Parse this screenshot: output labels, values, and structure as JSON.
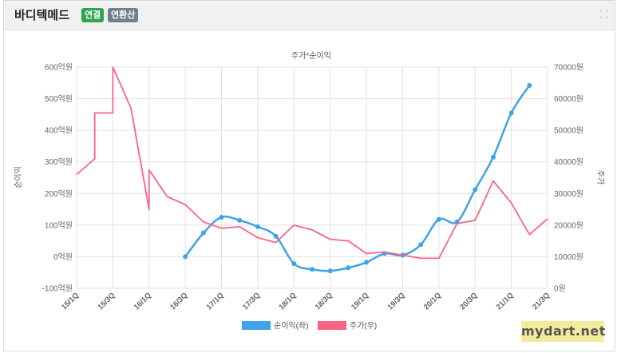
{
  "header": {
    "company": "바디텍메드",
    "badge_consolidated": "연결",
    "badge_annualized": "연환산",
    "expand_icon": "expand-icon"
  },
  "watermark": "mydart.net",
  "chart_data": {
    "type": "line",
    "title": "주가*순이익",
    "ylabel_left": "순이익",
    "ylabel_right": "주가",
    "x_ticks": [
      "15/1Q",
      "15/3Q",
      "16/1Q",
      "16/3Q",
      "17/1Q",
      "17/3Q",
      "18/1Q",
      "18/3Q",
      "19/1Q",
      "19/3Q",
      "20/1Q",
      "20/3Q",
      "21/1Q",
      "21/3Q"
    ],
    "left_axis": {
      "min": -100,
      "max": 600,
      "ticks": [
        -100,
        0,
        100,
        200,
        300,
        400,
        500,
        600
      ],
      "tick_labels": [
        "-100억원",
        "0억원",
        "100억원",
        "200억원",
        "300억원",
        "400억원",
        "500억원",
        "600억원"
      ]
    },
    "right_axis": {
      "min": 0,
      "max": 70000,
      "ticks": [
        0,
        10000,
        20000,
        30000,
        40000,
        50000,
        60000,
        70000
      ],
      "tick_labels": [
        "0원",
        "10000원",
        "20000원",
        "30000원",
        "40000원",
        "50000원",
        "60000원",
        "70000원"
      ]
    },
    "grid": true,
    "legend_position": "bottom",
    "series": [
      {
        "name": "순이익(좌)",
        "axis": "left",
        "color": "#3fa3e8",
        "points": [
          [
            "16/3Q",
            0
          ],
          [
            "16/4Q",
            75
          ],
          [
            "17/1Q",
            125
          ],
          [
            "17/2Q",
            115
          ],
          [
            "17/3Q",
            95
          ],
          [
            "17/4Q",
            65
          ],
          [
            "18/1Q",
            -22
          ],
          [
            "18/2Q",
            -40
          ],
          [
            "18/3Q",
            -45
          ],
          [
            "18/4Q",
            -35
          ],
          [
            "19/1Q",
            -18
          ],
          [
            "19/2Q",
            10
          ],
          [
            "19/3Q",
            5
          ],
          [
            "19/4Q",
            38
          ],
          [
            "20/1Q",
            118
          ],
          [
            "20/2Q",
            110
          ],
          [
            "20/3Q",
            212
          ],
          [
            "20/4Q",
            315
          ],
          [
            "21/1Q",
            455
          ],
          [
            "21/2Q",
            542
          ]
        ]
      },
      {
        "name": "주가(우)",
        "axis": "right",
        "color": "#fb6386",
        "points": [
          [
            "15/1Q",
            36000
          ],
          [
            "15/2Q",
            41000
          ],
          [
            "15/2Q",
            55500
          ],
          [
            "15/3Q",
            55500
          ],
          [
            "15/3Q",
            70000
          ],
          [
            "15/4Q",
            57000
          ],
          [
            "16/1Q",
            25000
          ],
          [
            "16/1Q",
            37500
          ],
          [
            "16/2Q",
            29000
          ],
          [
            "16/3Q",
            26500
          ],
          [
            "16/4Q",
            21000
          ],
          [
            "17/1Q",
            19000
          ],
          [
            "17/2Q",
            19500
          ],
          [
            "17/3Q",
            16000
          ],
          [
            "17/4Q",
            14500
          ],
          [
            "18/1Q",
            20000
          ],
          [
            "18/2Q",
            18500
          ],
          [
            "18/3Q",
            15500
          ],
          [
            "18/4Q",
            15000
          ],
          [
            "19/1Q",
            11000
          ],
          [
            "19/2Q",
            11500
          ],
          [
            "19/3Q",
            10500
          ],
          [
            "19/4Q",
            9500
          ],
          [
            "20/1Q",
            9500
          ],
          [
            "20/2Q",
            20500
          ],
          [
            "20/3Q",
            21500
          ],
          [
            "20/4Q",
            34000
          ],
          [
            "21/1Q",
            27000
          ],
          [
            "21/2Q",
            17000
          ],
          [
            "21/3Q",
            22000
          ]
        ]
      }
    ]
  }
}
